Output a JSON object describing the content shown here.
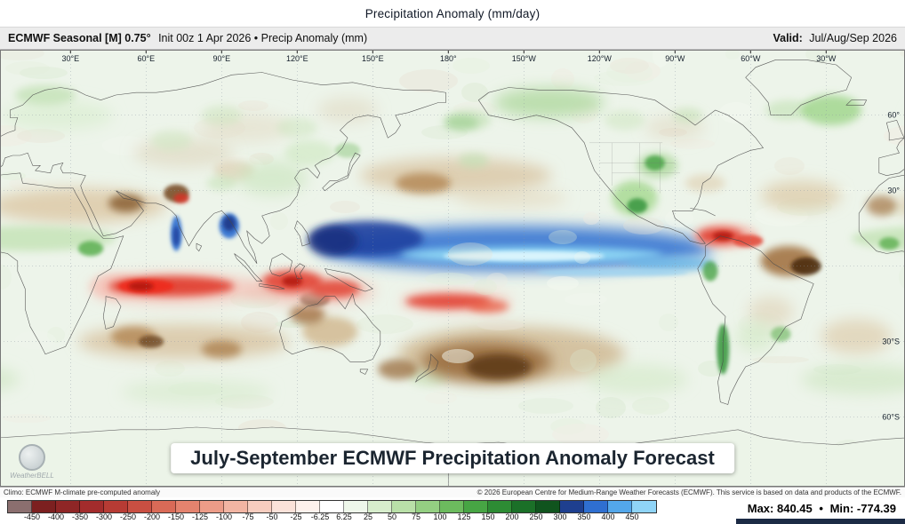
{
  "title": "Precipitation Anomaly (mm/day)",
  "header": {
    "product": "ECMWF Seasonal [M] 0.75°",
    "init_variable": "Init 00z 1 Apr 2026 • Precip Anomaly (mm)",
    "valid_label": "Valid:",
    "valid_value": "Jul/Aug/Sep 2026"
  },
  "map": {
    "caption": "July-September ECMWF Precipitation Anomaly Forecast",
    "watermark": "WeatherBELL",
    "lon_ticks": [
      {
        "label": "30°E",
        "lon": 30
      },
      {
        "label": "60°E",
        "lon": 60
      },
      {
        "label": "90°E",
        "lon": 90
      },
      {
        "label": "120°E",
        "lon": 120
      },
      {
        "label": "150°E",
        "lon": 150
      },
      {
        "label": "180°",
        "lon": 180
      },
      {
        "label": "150°W",
        "lon": -150
      },
      {
        "label": "120°W",
        "lon": -120
      },
      {
        "label": "90°W",
        "lon": -90
      },
      {
        "label": "60°W",
        "lon": -60
      },
      {
        "label": "30°W",
        "lon": -30
      }
    ],
    "lat_ticks": [
      {
        "label": "60°",
        "lat": 60
      },
      {
        "label": "30°",
        "lat": 30
      },
      {
        "label": "30°S",
        "lat": -30
      },
      {
        "label": "60°S",
        "lat": -60
      }
    ]
  },
  "footer": {
    "climo": "Climo: ECMWF M-climate pre-computed anomaly",
    "copyright": "© 2026 European Centre for Medium-Range Weather Forecasts (ECMWF). This service is based on data and products of the ECMWF."
  },
  "colorbar": {
    "tick_labels": [
      "-450",
      "-400",
      "-350",
      "-300",
      "-250",
      "-200",
      "-150",
      "-125",
      "-100",
      "-75",
      "-50",
      "-25",
      "-6.25",
      "6.25",
      "25",
      "50",
      "75",
      "100",
      "125",
      "150",
      "200",
      "250",
      "300",
      "350",
      "400",
      "450"
    ],
    "segment_colors": [
      "#8b6f6f",
      "#7c2020",
      "#8f2626",
      "#a32c2c",
      "#b73b34",
      "#c94f42",
      "#d96a57",
      "#e4836e",
      "#ec9c88",
      "#f2b5a3",
      "#f7cdbf",
      "#fbe2d9",
      "#fdf1ec",
      "#ffffff",
      "#eef7ea",
      "#d7edcc",
      "#b9e0a8",
      "#94cf82",
      "#6cbb5e",
      "#47a544",
      "#2d8c34",
      "#1b7028",
      "#10541e",
      "#1e3f8f",
      "#2f6fd0",
      "#53a7ea",
      "#8fd4f7"
    ]
  },
  "stats": {
    "max_label": "Max:",
    "max_value": "840.45",
    "separator": "•",
    "min_label": "Min:",
    "min_value": "-774.39"
  },
  "chart_data": {
    "type": "heatmap",
    "title": "Precipitation Anomaly (mm/day)",
    "units": "mm",
    "scale_ticks": [
      -450,
      -400,
      -350,
      -300,
      -250,
      -200,
      -150,
      -125,
      -100,
      -75,
      -50,
      -25,
      -6.25,
      6.25,
      25,
      50,
      75,
      100,
      125,
      150,
      200,
      250,
      300,
      350,
      400,
      450
    ],
    "max": 840.45,
    "min": -774.39,
    "init": "00z 1 Apr 2026",
    "valid": "Jul/Aug/Sep 2026"
  }
}
